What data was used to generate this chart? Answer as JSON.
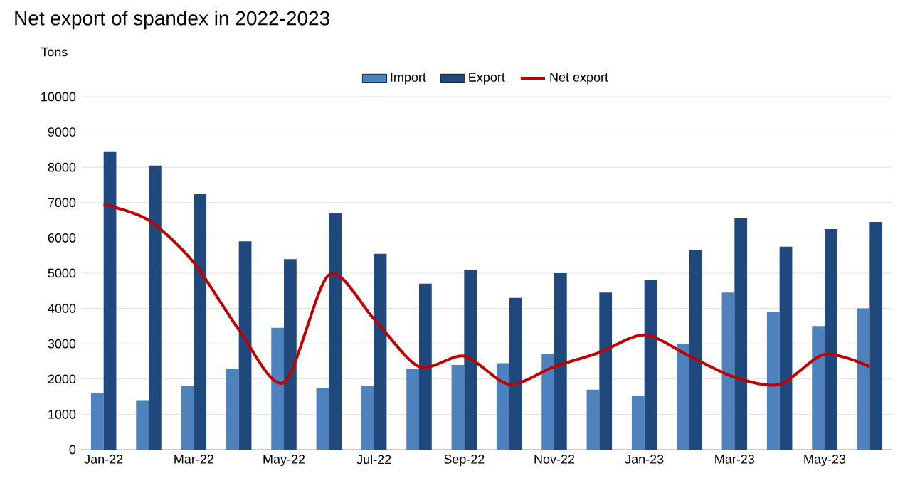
{
  "chart_data": {
    "type": "bar",
    "title": "Net export of spandex in 2022-2023",
    "ylabel": "Tons",
    "categories": [
      "Jan-22",
      null,
      "Mar-22",
      null,
      "May-22",
      null,
      "Jul-22",
      null,
      "Sep-22",
      null,
      "Nov-22",
      null,
      "Jan-23",
      null,
      "Mar-23",
      null,
      "May-23",
      null
    ],
    "series": [
      {
        "name": "Import",
        "color": "#4f81bd",
        "values": [
          1600,
          1400,
          1800,
          2300,
          3450,
          1750,
          1800,
          2300,
          2400,
          2450,
          2700,
          1700,
          1530,
          3000,
          4450,
          3900,
          3500,
          4000
        ]
      },
      {
        "name": "Export",
        "color": "#1f497d",
        "values": [
          8450,
          8050,
          7250,
          5900,
          5400,
          6700,
          5550,
          4700,
          5100,
          4300,
          5000,
          4450,
          4800,
          5650,
          6550,
          5750,
          6250,
          6450
        ]
      },
      {
        "name": "Net export",
        "type": "line",
        "color": "#c00000",
        "values": [
          6950,
          6500,
          5300,
          3400,
          1900,
          4950,
          3700,
          2350,
          2650,
          1850,
          2350,
          2750,
          3250,
          2650,
          2050,
          1850,
          2700,
          2350
        ]
      }
    ],
    "ylim": [
      0,
      10000
    ],
    "yticks": [
      0,
      1000,
      2000,
      3000,
      4000,
      5000,
      6000,
      7000,
      8000,
      9000,
      10000
    ],
    "grid": "y",
    "legend": "top",
    "marker": "none",
    "line_style": "solid"
  }
}
